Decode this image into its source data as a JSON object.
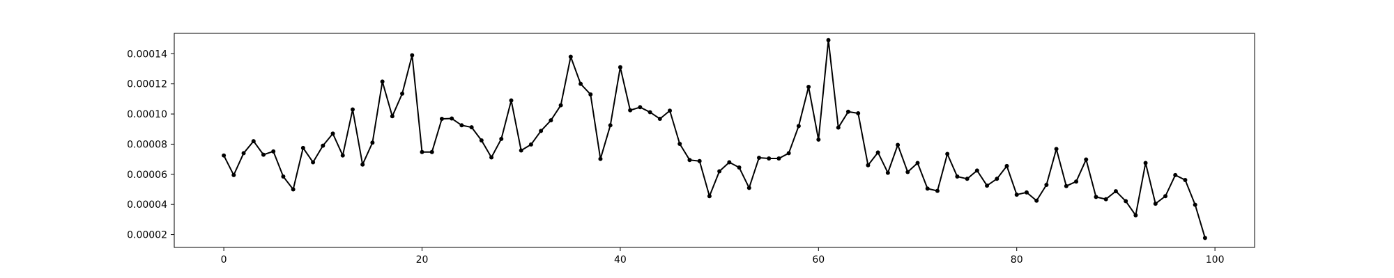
{
  "chart_data": {
    "type": "line",
    "title": "",
    "xlabel": "",
    "ylabel": "",
    "xlim": [
      -5,
      104
    ],
    "ylim": [
      1.15e-05,
      0.0001535
    ],
    "x_ticks": [
      0,
      20,
      40,
      60,
      80,
      100
    ],
    "x_tick_labels": [
      "0",
      "20",
      "40",
      "60",
      "80",
      "100"
    ],
    "y_ticks": [
      2e-05,
      4e-05,
      6e-05,
      8e-05,
      0.0001,
      0.00012,
      0.00014
    ],
    "y_tick_labels": [
      "0.00002",
      "0.00004",
      "0.00006",
      "0.00008",
      "0.00010",
      "0.00012",
      "0.00014"
    ],
    "grid": false,
    "legend": "none",
    "line_color": "#000000",
    "marker": "dot",
    "series": [
      {
        "x": [
          0,
          1,
          2,
          3,
          4,
          5,
          6,
          7,
          8,
          9,
          10,
          11,
          12,
          13,
          14,
          15,
          16,
          17,
          18,
          19,
          20,
          21,
          22,
          23,
          24,
          25,
          26,
          27,
          28,
          29,
          30,
          31,
          32,
          33,
          34,
          35,
          36,
          37,
          38,
          39,
          40,
          41,
          42,
          43,
          44,
          45,
          46,
          47,
          48,
          49,
          50,
          51,
          52,
          53,
          54,
          55,
          56,
          57,
          58,
          59,
          60,
          61,
          62,
          63,
          64,
          65,
          66,
          67,
          68,
          69,
          70,
          71,
          72,
          73,
          74,
          75,
          76,
          77,
          78,
          79,
          80,
          81,
          82,
          83,
          84,
          85,
          86,
          87,
          88,
          89,
          90,
          91,
          92,
          93,
          94,
          95,
          96,
          97,
          98,
          99
        ],
        "values": [
          7.25e-05,
          5.95e-05,
          7.4e-05,
          8.2e-05,
          7.3e-05,
          7.52e-05,
          5.85e-05,
          5e-05,
          7.75e-05,
          6.8e-05,
          7.9e-05,
          8.7e-05,
          7.25e-05,
          0.000103,
          6.65e-05,
          8.1e-05,
          0.0001215,
          9.85e-05,
          0.0001135,
          0.000139,
          7.48e-05,
          7.48e-05,
          9.68e-05,
          9.7e-05,
          9.25e-05,
          9.12e-05,
          8.25e-05,
          7.12e-05,
          8.35e-05,
          0.000109,
          7.58e-05,
          7.98e-05,
          8.88e-05,
          9.58e-05,
          0.0001058,
          0.000138,
          0.00012,
          0.000113,
          7.02e-05,
          9.25e-05,
          0.000131,
          0.0001025,
          0.0001045,
          0.0001012,
          9.68e-05,
          0.0001022,
          8.02e-05,
          6.95e-05,
          6.88e-05,
          4.55e-05,
          6.2e-05,
          6.8e-05,
          6.45e-05,
          5.1e-05,
          7.1e-05,
          7.05e-05,
          7.05e-05,
          7.4e-05,
          9.2e-05,
          0.000118,
          8.3e-05,
          0.000149,
          9.1e-05,
          0.0001015,
          0.0001005,
          6.6e-05,
          7.45e-05,
          6.1e-05,
          7.95e-05,
          6.15e-05,
          6.75e-05,
          5.05e-05,
          4.9e-05,
          7.35e-05,
          5.85e-05,
          5.7e-05,
          6.25e-05,
          5.25e-05,
          5.7e-05,
          6.55e-05,
          4.65e-05,
          4.8e-05,
          4.25e-05,
          5.3e-05,
          7.68e-05,
          5.22e-05,
          5.52e-05,
          6.98e-05,
          4.5e-05,
          4.35e-05,
          4.88e-05,
          4.22e-05,
          3.28e-05,
          6.75e-05,
          4.05e-05,
          4.55e-05,
          5.95e-05,
          5.62e-05,
          3.98e-05,
          1.78e-05
        ]
      }
    ]
  }
}
